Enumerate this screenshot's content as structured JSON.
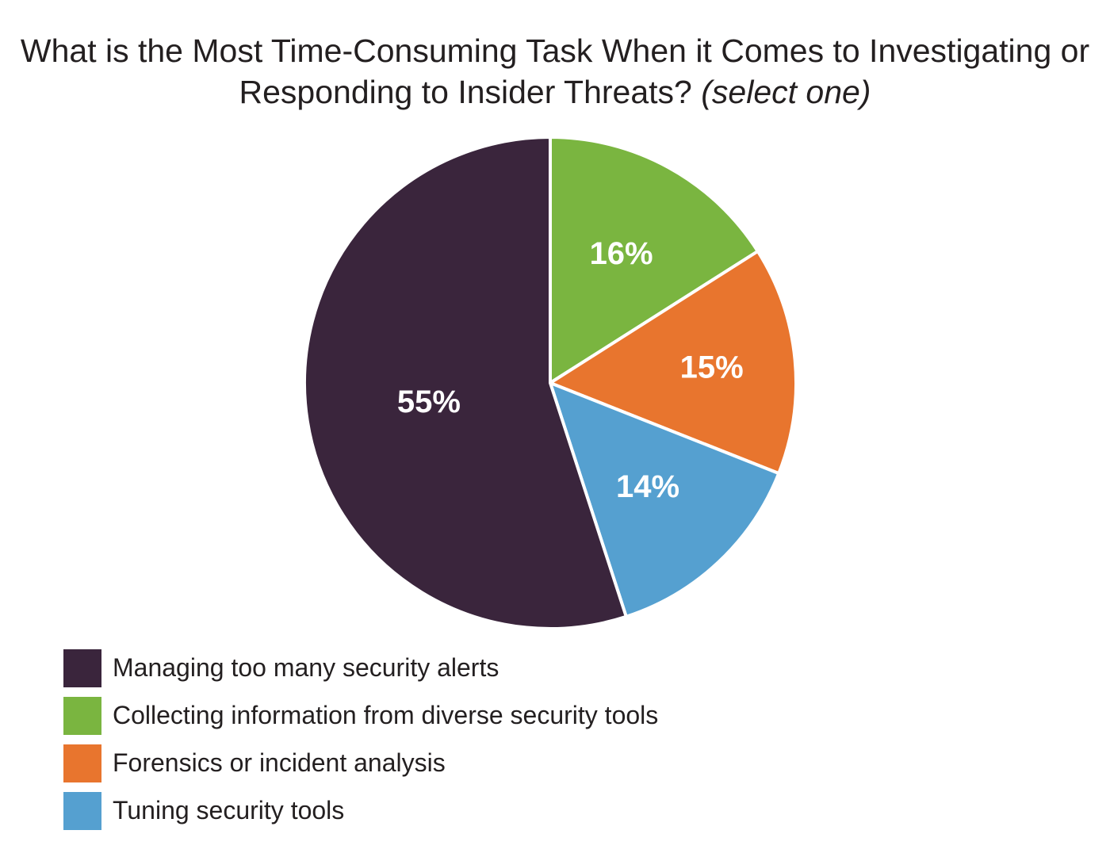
{
  "title": {
    "main": "What is the Most Time-Consuming Task When it Comes to Investigating or Responding to Insider Threats?",
    "sub": "(select one)"
  },
  "chart_data": {
    "type": "pie",
    "start": "12 o'clock",
    "direction": "clockwise",
    "slices": [
      {
        "label": "Collecting information from diverse security tools",
        "value": 16,
        "display": "16%",
        "color": "#7ab540"
      },
      {
        "label": "Forensics or incident analysis",
        "value": 15,
        "display": "15%",
        "color": "#e8752e"
      },
      {
        "label": "Tuning security tools",
        "value": 14,
        "display": "14%",
        "color": "#55a0d0"
      },
      {
        "label": "Managing too many security alerts",
        "value": 55,
        "display": "55%",
        "color": "#3a253c"
      }
    ],
    "legend": [
      {
        "label": "Managing too many security alerts",
        "color": "#3a253c"
      },
      {
        "label": "Collecting information from diverse security tools",
        "color": "#7ab540"
      },
      {
        "label": "Forensics or incident analysis",
        "color": "#e8752e"
      },
      {
        "label": "Tuning security tools",
        "color": "#55a0d0"
      }
    ],
    "legend_position": "bottom-left"
  }
}
